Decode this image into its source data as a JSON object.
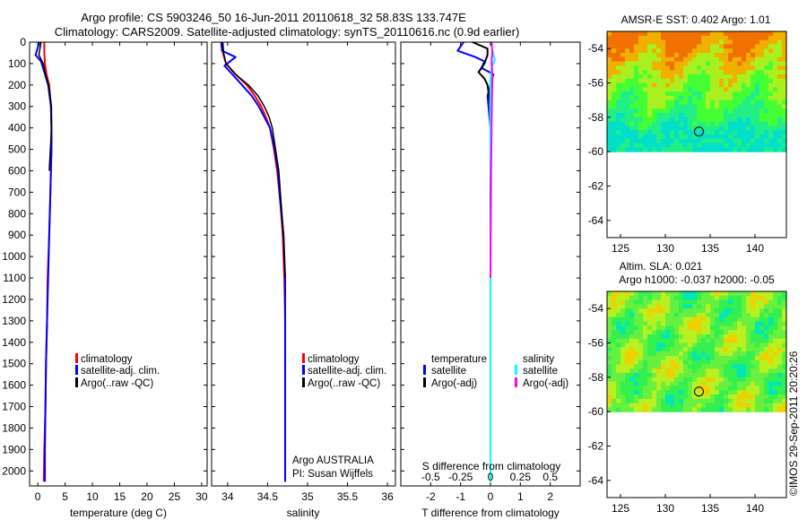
{
  "header": {
    "title_line1": "Argo profile: CS 5903246_50 16-Jun-2011 20110618_32 58.83S 133.747E",
    "title_line2": "Climatology: CARS2009. Satellite-adjusted climatology: synTS_20110616.nc (0.9d earlier)"
  },
  "colors": {
    "climatology": "#ff0000",
    "satellite": "#0000ff",
    "argo": "#000000",
    "satellite_s": "#00ffff",
    "argo_s": "#ff00ff"
  },
  "legend": {
    "climatology": "climatology",
    "satellite": "satellite-adj. clim.",
    "argo": "Argo(..raw -QC)"
  },
  "legend3": {
    "temperature_title": "temperature",
    "salinity_title": "salinity",
    "satellite": "satellite",
    "argo": "Argo(-adj)"
  },
  "annotation": {
    "line1": "Argo AUSTRALIA",
    "line2": "PI: Susan Wijffels"
  },
  "credit": "©IMOS 29-Sep-2011 20:20:26",
  "chart_data": [
    {
      "type": "line",
      "xlabel": "temperature (deg C)",
      "xlim": [
        -1.5,
        31
      ],
      "ylim": [
        2070,
        0
      ],
      "xticks": [
        "0",
        "5",
        "10",
        "15",
        "20",
        "25",
        "30"
      ],
      "xtick_values": [
        0,
        5,
        10,
        15,
        20,
        25,
        30
      ],
      "yticks": [
        "0",
        "100",
        "200",
        "300",
        "400",
        "500",
        "600",
        "700",
        "800",
        "900",
        "1000",
        "1100",
        "1200",
        "1300",
        "1400",
        "1500",
        "1600",
        "1700",
        "1800",
        "1900",
        "2000"
      ],
      "ytick_values": [
        0,
        100,
        200,
        300,
        400,
        500,
        600,
        700,
        800,
        900,
        1000,
        1100,
        1200,
        1300,
        1400,
        1500,
        1600,
        1700,
        1800,
        1900,
        2000
      ],
      "series": [
        {
          "key": "climatology",
          "color": "#ff0000",
          "width": 2,
          "x": [
            1.2,
            1.2,
            1.3,
            1.6,
            2.1,
            2.4,
            2.5,
            2.5,
            2.3,
            2.1,
            1.8,
            1.7,
            1.5,
            1.4,
            1.2,
            1.1
          ],
          "y": [
            0,
            50,
            100,
            150,
            200,
            300,
            400,
            500,
            700,
            900,
            1100,
            1300,
            1500,
            1700,
            1900,
            2050
          ]
        },
        {
          "key": "satellite",
          "color": "#0000ff",
          "width": 2,
          "x": [
            0.3,
            -0.4,
            0.6,
            1.3,
            1.9,
            2.4,
            2.5,
            2.5,
            2.3,
            2.1,
            1.9,
            1.7,
            1.5,
            1.4,
            1.3,
            1.3
          ],
          "y": [
            0,
            60,
            90,
            150,
            200,
            300,
            400,
            500,
            700,
            900,
            1100,
            1300,
            1500,
            1700,
            1900,
            2050
          ]
        },
        {
          "key": "argo",
          "color": "#000000",
          "width": 1.5,
          "x": [
            0.6,
            0.2,
            1.0,
            1.4,
            2.0,
            2.5,
            2.5,
            2.3,
            2.1
          ],
          "y": [
            0,
            60,
            100,
            150,
            200,
            300,
            400,
            500,
            600
          ]
        }
      ]
    },
    {
      "type": "line",
      "xlabel": "salinity",
      "xlim": [
        33.8,
        36.1
      ],
      "ylim": [
        2070,
        0
      ],
      "xticks": [
        "34",
        "34.5",
        "35",
        "35.5",
        "36"
      ],
      "xtick_values": [
        34,
        34.5,
        35,
        35.5,
        36
      ],
      "series": [
        {
          "key": "climatology",
          "color": "#ff0000",
          "width": 2,
          "x": [
            33.92,
            33.94,
            33.98,
            34.1,
            34.24,
            34.34,
            34.42,
            34.48,
            34.53,
            34.58,
            34.62,
            34.66,
            34.69,
            34.71,
            34.72,
            34.72,
            34.72
          ],
          "y": [
            0,
            50,
            100,
            150,
            200,
            250,
            300,
            350,
            400,
            500,
            600,
            750,
            900,
            1100,
            1300,
            1600,
            2050
          ]
        },
        {
          "key": "satellite",
          "color": "#0000ff",
          "width": 2,
          "x": [
            33.92,
            33.93,
            34.1,
            33.96,
            34.06,
            34.18,
            34.3,
            34.39,
            34.46,
            34.53,
            34.59,
            34.63,
            34.66,
            34.7,
            34.72,
            34.72,
            34.72,
            34.72
          ],
          "y": [
            0,
            40,
            70,
            110,
            150,
            200,
            250,
            300,
            350,
            400,
            500,
            600,
            750,
            900,
            1100,
            1300,
            1600,
            2050
          ]
        },
        {
          "key": "argo",
          "color": "#000000",
          "width": 1.5,
          "x": [
            33.94,
            33.95,
            33.98,
            34.1,
            34.26,
            34.38,
            34.46,
            34.52,
            34.56,
            34.6,
            34.64,
            34.67,
            34.7,
            34.72
          ],
          "y": [
            0,
            50,
            100,
            150,
            200,
            250,
            300,
            350,
            400,
            500,
            600,
            750,
            900,
            1100
          ]
        }
      ]
    },
    {
      "type": "line",
      "xlabel": "T difference from climatology",
      "x2label": "S difference from climatology",
      "xlim": [
        -3,
        3
      ],
      "ylim": [
        2070,
        0
      ],
      "xticks": [
        "-2",
        "-1",
        "0",
        "1",
        "2"
      ],
      "xtick_values": [
        -2,
        -1,
        0,
        1,
        2
      ],
      "x2ticks": [
        "-0.5",
        "-0.25",
        "0",
        "0.25",
        "0.5"
      ],
      "x2tick_values": [
        -0.5,
        -0.25,
        0,
        0.25,
        0.5
      ],
      "x2lim": [
        -0.75,
        0.75
      ],
      "series": [
        {
          "key": "t_satellite",
          "color": "#0000ff",
          "width": 2,
          "x": [
            -0.9,
            -1.1,
            -0.5,
            -0.2,
            -0.3,
            0.1,
            -0.1,
            0.0,
            0.0,
            0.0,
            0.0
          ],
          "y": [
            0,
            40,
            70,
            90,
            120,
            150,
            250,
            400,
            700,
            1200,
            2000
          ]
        },
        {
          "key": "t_argo",
          "color": "#000000",
          "width": 2,
          "x": [
            -0.6,
            -0.1,
            -0.1,
            -0.2,
            -0.4,
            -0.2,
            -0.1,
            0.0,
            0.0,
            0.0,
            0.0
          ],
          "y": [
            0,
            30,
            60,
            100,
            140,
            170,
            200,
            300,
            500,
            1100,
            2000
          ]
        },
        {
          "key": "s_satellite",
          "color": "#00ffff",
          "width": 2,
          "x": [
            0.03,
            0.05,
            0.1,
            0.15,
            0.04,
            0.0,
            -0.01,
            0.0,
            0.01,
            0.0,
            0.0,
            0.0
          ],
          "y": [
            0,
            30,
            60,
            80,
            120,
            180,
            300,
            500,
            700,
            1000,
            1500,
            2050
          ]
        },
        {
          "key": "s_argo",
          "color": "#ff00ff",
          "width": 2,
          "x": [
            0.04,
            0.06,
            0.04,
            0.07,
            0.05,
            0.04,
            0.02,
            0.01,
            0.0
          ],
          "y": [
            0,
            40,
            100,
            160,
            250,
            400,
            600,
            850,
            1100
          ]
        }
      ]
    },
    {
      "type": "heatmap",
      "title": "AMSR-E SST: 0.402 Argo: 1.01",
      "xlim": [
        123.5,
        143.5
      ],
      "ylim": [
        -65,
        -53
      ],
      "xticks": [
        "125",
        "130",
        "135",
        "140"
      ],
      "xtick_values": [
        125,
        130,
        135,
        140
      ],
      "yticks": [
        "-54",
        "-56",
        "-58",
        "-60",
        "-62",
        "-64"
      ],
      "ytick_values": [
        -54,
        -56,
        -58,
        -60,
        -62,
        -64
      ],
      "data_bottom": -60,
      "marker": {
        "lon": 133.747,
        "lat": -58.83
      },
      "palette": [
        "#00e0c8",
        "#22ee88",
        "#44ff33",
        "#aaf020",
        "#f0b000",
        "#f07000"
      ]
    },
    {
      "type": "heatmap",
      "title_line1": "Altim. SLA: 0.021",
      "title_line2": "Argo h1000: -0.037 h2000: -0.05",
      "xlim": [
        123.5,
        143.5
      ],
      "ylim": [
        -65,
        -53
      ],
      "xticks": [
        "125",
        "130",
        "135",
        "140"
      ],
      "xtick_values": [
        125,
        130,
        135,
        140
      ],
      "yticks": [
        "-54",
        "-56",
        "-58",
        "-60",
        "-62",
        "-64"
      ],
      "ytick_values": [
        -54,
        -56,
        -58,
        -60,
        -62,
        -64
      ],
      "data_bottom": -60,
      "marker": {
        "lon": 133.747,
        "lat": -58.83
      },
      "palette": [
        "#00e6b4",
        "#33f050",
        "#66f040",
        "#b8f020",
        "#f0d000",
        "#f0a000"
      ]
    }
  ]
}
